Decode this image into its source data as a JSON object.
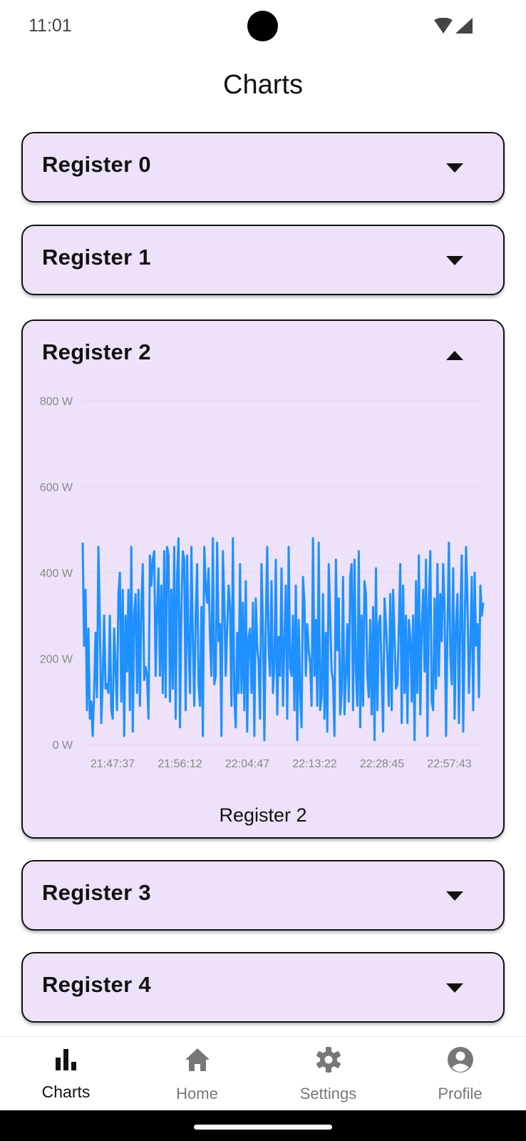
{
  "status": {
    "time": "11:01"
  },
  "app": {
    "title": "Charts"
  },
  "registers": [
    {
      "label": "Register 0",
      "expanded": false
    },
    {
      "label": "Register 1",
      "expanded": false
    },
    {
      "label": "Register 2",
      "expanded": true
    },
    {
      "label": "Register 3",
      "expanded": false
    },
    {
      "label": "Register 4",
      "expanded": false
    }
  ],
  "chart_data": {
    "type": "line",
    "title": "Register 2",
    "xlabel": "",
    "ylabel": "",
    "y_tick_labels": [
      "0 W",
      "200 W",
      "400 W",
      "600 W",
      "800 W"
    ],
    "x_tick_labels": [
      "21:47:37",
      "21:56:12",
      "22:04:47",
      "22:13:22",
      "22:28:45",
      "22:57:43"
    ],
    "ylim": [
      0,
      800
    ],
    "unit": "W",
    "grid": true,
    "line_color": "#1e90ff",
    "series": [
      {
        "values": [
          470,
          230,
          360,
          80,
          270,
          60,
          100,
          20,
          120,
          260,
          110,
          460,
          290,
          50,
          150,
          300,
          130,
          140,
          120,
          300,
          80,
          60,
          270,
          180,
          80,
          350,
          400,
          100,
          360,
          20,
          300,
          170,
          360,
          80,
          460,
          30,
          300,
          350,
          120,
          360,
          90,
          320,
          420,
          150,
          180,
          160,
          60,
          440,
          370,
          430,
          450,
          160,
          310,
          410,
          160,
          370,
          120,
          450,
          110,
          460,
          440,
          100,
          360,
          130,
          460,
          60,
          390,
          480,
          40,
          310,
          450,
          430,
          80,
          440,
          240,
          120,
          460,
          250,
          90,
          300,
          420,
          140,
          90,
          320,
          20,
          460,
          370,
          330,
          410,
          250,
          160,
          480,
          140,
          160,
          470,
          240,
          280,
          20,
          450,
          330,
          160,
          270,
          370,
          320,
          90,
          480,
          110,
          40,
          260,
          120,
          420,
          120,
          330,
          80,
          380,
          30,
          250,
          270,
          120,
          330,
          20,
          340,
          230,
          190,
          60,
          420,
          270,
          10,
          280,
          460,
          220,
          160,
          380,
          120,
          180,
          430,
          70,
          250,
          160,
          410,
          90,
          240,
          370,
          60,
          460,
          180,
          160,
          300,
          80,
          370,
          10,
          290,
          120,
          40,
          390,
          330,
          160,
          280,
          220,
          190,
          90,
          480,
          160,
          290,
          90,
          470,
          80,
          110,
          350,
          60,
          260,
          30,
          420,
          300,
          170,
          150,
          20,
          430,
          220,
          340,
          70,
          120,
          390,
          70,
          160,
          280,
          100,
          390,
          420,
          80,
          430,
          170,
          90,
          450,
          40,
          300,
          90,
          380,
          350,
          160,
          110,
          290,
          70,
          320,
          10,
          410,
          80,
          280,
          300,
          160,
          30,
          340,
          280,
          200,
          90,
          350,
          80,
          360,
          250,
          130,
          140,
          270,
          420,
          50,
          370,
          120,
          300,
          50,
          290,
          250,
          100,
          300,
          10,
          380,
          120,
          440,
          70,
          270,
          360,
          170,
          430,
          20,
          330,
          450,
          100,
          80,
          340,
          130,
          420,
          160,
          350,
          240,
          420,
          310,
          20,
          270,
          470,
          210,
          140,
          410,
          60,
          280,
          350,
          50,
          300,
          440,
          30,
          260,
          460,
          330,
          120,
          230,
          390,
          80,
          400,
          230,
          280,
          110,
          370,
          300,
          330
        ]
      }
    ]
  },
  "nav": {
    "items": [
      {
        "label": "Charts",
        "icon": "bar-chart-icon",
        "active": true
      },
      {
        "label": "Home",
        "icon": "home-icon",
        "active": false
      },
      {
        "label": "Settings",
        "icon": "gear-icon",
        "active": false
      },
      {
        "label": "Profile",
        "icon": "account-circle-icon",
        "active": false
      }
    ]
  },
  "colors": {
    "panel_bg": "#ede2f9",
    "chart_line": "#1e90ff",
    "active_nav": "#111111",
    "inactive_nav": "#777777"
  }
}
